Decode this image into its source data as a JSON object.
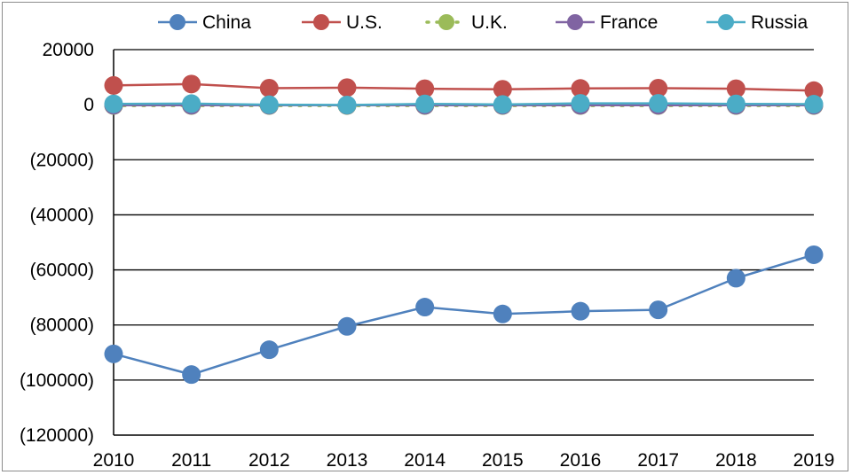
{
  "chart_data": {
    "type": "line",
    "title": "",
    "xlabel": "",
    "ylabel": "",
    "x": [
      "2010",
      "2011",
      "2012",
      "2013",
      "2014",
      "2015",
      "2016",
      "2017",
      "2018",
      "2019"
    ],
    "ylim": [
      -120000,
      20000
    ],
    "yticks": [
      20000,
      0,
      -20000,
      -40000,
      -60000,
      -80000,
      -100000,
      -120000
    ],
    "ytick_labels": [
      "20000",
      "0",
      "(20000)",
      "(40000)",
      "(60000)",
      "(80000)",
      "(100000)",
      "(120000)"
    ],
    "grid": true,
    "legend_position": "top",
    "series": [
      {
        "name": "China",
        "color": "#4f81bd",
        "dashed": false,
        "values": [
          -90500,
          -98000,
          -89000,
          -80500,
          -73500,
          -76000,
          -75000,
          -74500,
          -63000,
          -54500
        ]
      },
      {
        "name": "U.S.",
        "color": "#c0504d",
        "dashed": false,
        "values": [
          7000,
          7500,
          6000,
          6200,
          5800,
          5600,
          5900,
          6000,
          5800,
          5100
        ]
      },
      {
        "name": "U.K.",
        "color": "#9bbb59",
        "dashed": true,
        "values": [
          -300,
          -300,
          -300,
          -300,
          -300,
          -300,
          -300,
          -300,
          -300,
          -300
        ]
      },
      {
        "name": "France",
        "color": "#8064a2",
        "dashed": false,
        "values": [
          -200,
          -200,
          -200,
          -200,
          -200,
          -200,
          -200,
          -200,
          -200,
          -200
        ]
      },
      {
        "name": "Russia",
        "color": "#4bacc6",
        "dashed": false,
        "values": [
          300,
          400,
          0,
          -100,
          300,
          100,
          500,
          500,
          300,
          200
        ]
      }
    ]
  }
}
